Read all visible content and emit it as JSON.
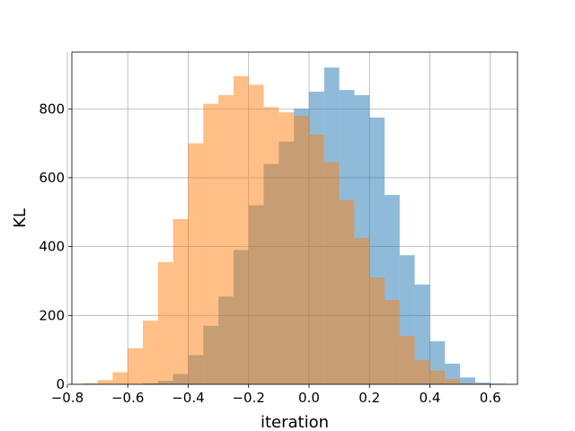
{
  "chart_data": {
    "type": "histogram",
    "title": "",
    "xlabel": "iteration",
    "ylabel": "KL",
    "xlim": [
      -0.785,
      0.69
    ],
    "ylim": [
      0,
      965
    ],
    "grid": true,
    "legend": "none",
    "xticks": [
      -0.8,
      -0.6,
      -0.4,
      -0.2,
      0.0,
      0.2,
      0.4,
      0.6
    ],
    "xtick_labels": [
      "−0.8",
      "−0.6",
      "−0.4",
      "−0.2",
      "0.0",
      "0.2",
      "0.4",
      "0.6"
    ],
    "yticks": [
      0,
      200,
      400,
      600,
      800
    ],
    "ytick_labels": [
      "0",
      "200",
      "400",
      "600",
      "800"
    ],
    "bin_edges": [
      -0.75,
      -0.7,
      -0.65,
      -0.6,
      -0.55,
      -0.5,
      -0.45,
      -0.4,
      -0.35,
      -0.3,
      -0.25,
      -0.2,
      -0.15,
      -0.1,
      -0.05,
      0.0,
      0.05,
      0.1,
      0.15,
      0.2,
      0.25,
      0.3,
      0.35,
      0.4,
      0.45,
      0.5,
      0.55,
      0.6,
      0.65
    ],
    "series": [
      {
        "color": "#1f77b4",
        "opacity": 0.5,
        "values": [
          0,
          0,
          0,
          0,
          3,
          10,
          30,
          85,
          170,
          255,
          390,
          520,
          640,
          705,
          800,
          850,
          920,
          855,
          840,
          775,
          550,
          375,
          290,
          125,
          60,
          20,
          5,
          2
        ]
      },
      {
        "color": "#ff7f0e",
        "opacity": 0.5,
        "values": [
          3,
          12,
          35,
          105,
          185,
          355,
          480,
          700,
          815,
          840,
          895,
          870,
          805,
          790,
          780,
          725,
          645,
          535,
          425,
          310,
          245,
          140,
          70,
          40,
          15,
          3,
          0,
          0
        ]
      }
    ]
  }
}
